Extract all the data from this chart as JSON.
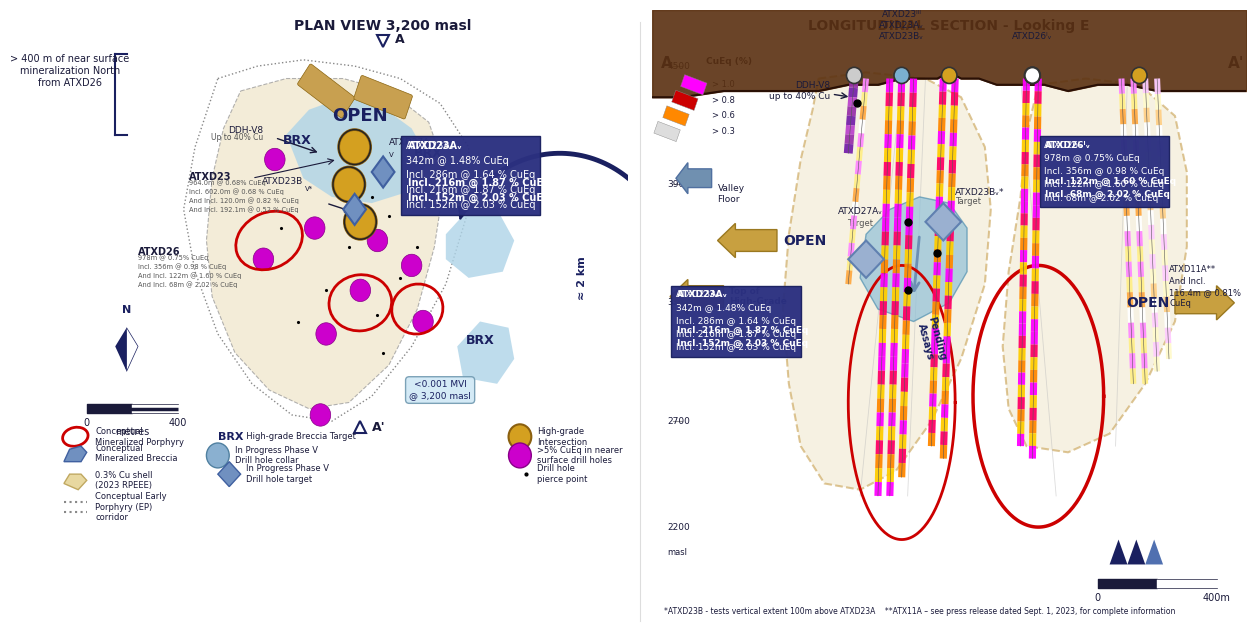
{
  "left_title": "PLAN VIEW 3,200 masl",
  "right_title": "LONGITUDINAL SECTION - Looking E",
  "bg_color": "#ffffff",
  "left_note": "> 400 m of near surface\nmineralization North\nfrom ATXD26",
  "bottom_note": "*ATXD23B - tests vertical extent 100m above ATXD23A    **ATX11A – see press release dated Sept. 1, 2023, for complete information",
  "atxd23av_text": "ATXD23Aᵥ\n342m @ 1.48% CuEq\nIncl. 286m @ 1.64 % CuEq\nIncl. 216m @ 1.87 % CuEq\nIncl. 152m @ 2.03 % CuEq",
  "atxd26iv_text": "ATXD26ᴵᵥ\n978m @ 0.75% CuEq\nIncl. 356m @ 0.98 % CuEq\nIncl. 122m @ 1.60 % CuEq\nIncl. 68m @ 2.02 % CuEq",
  "box_color": "#2b3080",
  "box_text_color": "#ffffff",
  "open_color": "#b8860b",
  "blue_shell": "#b8d8ea",
  "tan_shell": "#f0e8d0",
  "red_oval": "#cc0000",
  "gold_circle": "#d4a020",
  "magenta": "#cc00cc",
  "topo_fill": "#6b4820",
  "arrow_color": "#1a2060",
  "valley_blue": "#7ab0c0",
  "pending_color": "#1a2060"
}
